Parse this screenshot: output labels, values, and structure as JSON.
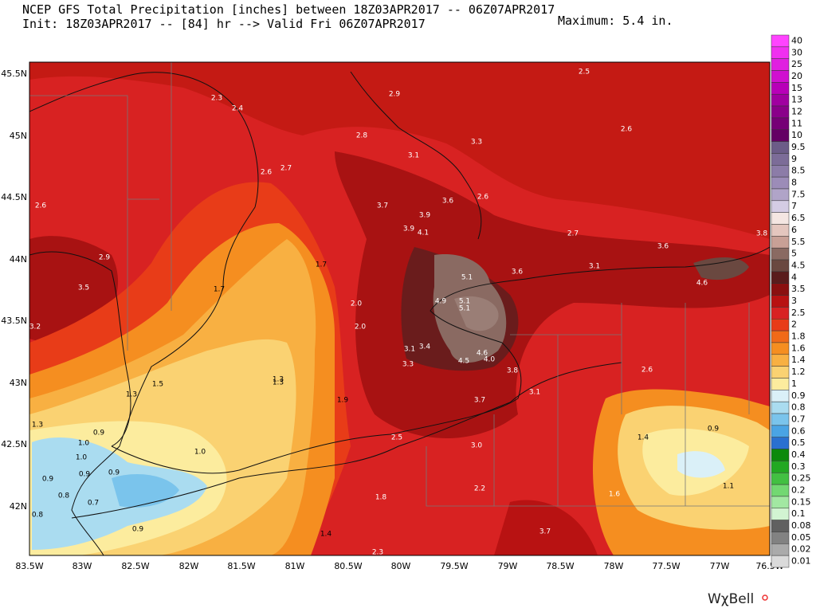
{
  "header": {
    "title_line1": "NCEP GFS Total Precipitation [inches] between 18Z03APR2017 -- 06Z07APR2017",
    "title_line2": "Init: 18Z03APR2017 -- [84] hr --> Valid Fri 06Z07APR2017",
    "maximum": "Maximum: 5.4 in."
  },
  "axes": {
    "lon_labels": [
      "83.5W",
      "83W",
      "82.5W",
      "82W",
      "81.5W",
      "81W",
      "80.5W",
      "80W",
      "79.5W",
      "79W",
      "78.5W",
      "78W",
      "77.5W",
      "77W",
      "76.5W"
    ],
    "lat_labels": [
      "45.5N",
      "45N",
      "44.5N",
      "44N",
      "43.5N",
      "43N",
      "42.5N",
      "42N"
    ]
  },
  "colorbar": {
    "labels": [
      "40",
      "30",
      "25",
      "20",
      "15",
      "13",
      "12",
      "11",
      "10",
      "9.5",
      "9",
      "8.5",
      "8",
      "7.5",
      "7",
      "6.5",
      "6",
      "5.5",
      "5",
      "4.5",
      "4",
      "3.5",
      "3",
      "2.5",
      "2",
      "1.8",
      "1.6",
      "1.4",
      "1.2",
      "1",
      "0.9",
      "0.8",
      "0.7",
      "0.6",
      "0.5",
      "0.4",
      "0.3",
      "0.25",
      "0.2",
      "0.15",
      "0.1",
      "0.08",
      "0.05",
      "0.02",
      "0.01"
    ],
    "colors": [
      "#ff44ff",
      "#f030f0",
      "#e020e0",
      "#d010d0",
      "#b800b8",
      "#a000a0",
      "#8a008a",
      "#760076",
      "#640064",
      "#6c5c88",
      "#7c6c98",
      "#8c7ca8",
      "#9c8cb8",
      "#b0a4c8",
      "#d4cce4",
      "#f4e6e2",
      "#e4c6be",
      "#c8a096",
      "#8a6a62",
      "#6a4840",
      "#5a1c1c",
      "#8a1010",
      "#b81212",
      "#d82222",
      "#e83c18",
      "#f06a18",
      "#f58e20",
      "#f8b042",
      "#fad272",
      "#fcec9e",
      "#daf0f8",
      "#aadcf0",
      "#7ac4ec",
      "#4aa4e4",
      "#2a70d0",
      "#0c8a0c",
      "#22a822",
      "#42c042",
      "#72d872",
      "#a2e8a2",
      "#d2f4d2",
      "#606060",
      "#828282",
      "#aaaaaa",
      "#dadada"
    ]
  },
  "map_labels": [
    "2.5",
    "2.3",
    "2.4",
    "2.9",
    "2.8",
    "3.3",
    "2.6",
    "3.1",
    "2.6",
    "2.7",
    "3.7",
    "3.6",
    "2.6",
    "3.9",
    "3.9",
    "4.1",
    "2.6",
    "2.7",
    "3.8",
    "3.6",
    "2.9",
    "1.7",
    "3.1",
    "3.6",
    "5.1",
    "4.6",
    "3.5",
    "1.7",
    "2.0",
    "4.9",
    "5.1",
    "5.1",
    "3.2",
    "2.0",
    "3.1",
    "3.4",
    "4.6",
    "4.0",
    "4.5",
    "3.3",
    "3.8",
    "2.6",
    "1.3",
    "1.3",
    "1.5",
    "3.1",
    "1.3",
    "1.9",
    "3.7",
    "1.3",
    "0.9",
    "2.5",
    "1.4",
    "0.9",
    "1.0",
    "3.0",
    "1.0",
    "1.0",
    "0.9",
    "0.9",
    "0.9",
    "1.1",
    "2.2",
    "0.7",
    "1.6",
    "1.8",
    "0.8",
    "0.8",
    "0.9",
    "1.4",
    "3.7",
    "2.3"
  ],
  "logo": "WχBell"
}
